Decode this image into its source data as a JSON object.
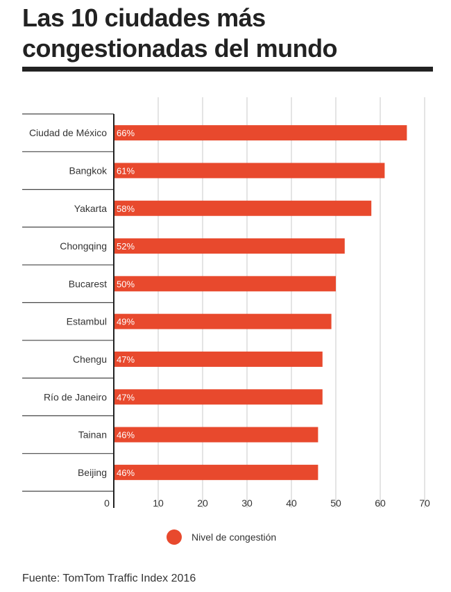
{
  "title": "Las 10 ciudades más congestionadas del mundo",
  "source": "Fuente: TomTom Traffic Index 2016",
  "colors": {
    "bar": "#e8492d",
    "grid": "#c8c8c8",
    "axis": "#222222",
    "rule": "#222222"
  },
  "chart_data": {
    "type": "bar",
    "orientation": "horizontal",
    "title": "Las 10 ciudades más congestionadas del mundo",
    "categories": [
      "Ciudad de México",
      "Bangkok",
      "Yakarta",
      "Chongqing",
      "Bucarest",
      "Estambul",
      "Chengu",
      "Río de Janeiro",
      "Tainan",
      "Beijing"
    ],
    "series": [
      {
        "name": "Nivel de congestión",
        "values": [
          66,
          61,
          58,
          52,
          50,
          49,
          47,
          47,
          46,
          46
        ],
        "labels": [
          "66%",
          "61%",
          "58%",
          "52%",
          "50%",
          "49%",
          "47%",
          "47%",
          "46%",
          "46%"
        ]
      }
    ],
    "xlim": [
      0,
      70
    ],
    "xticks": [
      "0",
      "10",
      "20",
      "30",
      "40",
      "50",
      "60",
      "70"
    ],
    "xlabel": "",
    "ylabel": "",
    "grid": true,
    "legend_position": "bottom"
  }
}
